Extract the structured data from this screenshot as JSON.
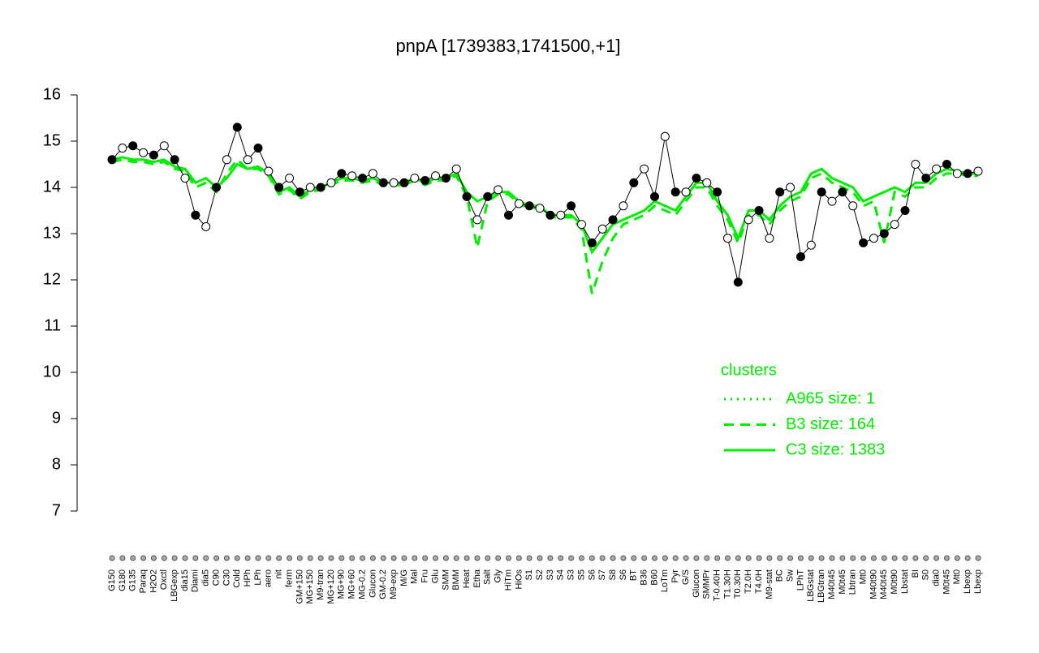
{
  "chart_data": {
    "type": "line",
    "title": "pnpA [1739383,1741500,+1]",
    "categories": [
      "G150",
      "G180",
      "G135",
      "Paraq",
      "H2O2",
      "Oxctl",
      "LBGexp",
      "dia15",
      "Diami",
      "dia5",
      "C90",
      "C30",
      "Cold",
      "HPh",
      "LPh",
      "aero",
      "nit",
      "ferm",
      "GM+150",
      "MG+150",
      "M9-tran",
      "MG+120",
      "MG+90",
      "MG+60",
      "MG-0.2",
      "Glucon",
      "GM-0.2",
      "M9-exp",
      "M/G",
      "Mal",
      "Fru",
      "Glu",
      "SMM",
      "BMM",
      "Heat",
      "Etha",
      "Salt",
      "Gly",
      "HiTm",
      "HiOs",
      "S1",
      "S2",
      "S3",
      "S4",
      "S3",
      "S5",
      "S6",
      "S7",
      "S8",
      "S6",
      "BT",
      "B36",
      "B60",
      "LoTm",
      "Pyr",
      "G/S",
      "Glucon",
      "SMMPr",
      "T-0.40H",
      "T1.30H",
      "T0.30H",
      "T2.0H",
      "T4.0H",
      "M9-stat",
      "BC",
      "Sw",
      "LPhT",
      "LBGstat",
      "LBGtran",
      "M40t45",
      "M0t45",
      "Lbtran",
      "Mt0",
      "M40t90",
      "M40t45",
      "M0t90",
      "Lbstat",
      "BI",
      "S0",
      "dia0",
      "M0t45",
      "Mt0",
      "Lbexp",
      "Lbexp"
    ],
    "values": [
      14.6,
      14.85,
      14.9,
      14.75,
      14.7,
      14.9,
      14.6,
      14.2,
      13.4,
      13.15,
      14.0,
      14.6,
      15.3,
      14.6,
      14.85,
      14.35,
      14.0,
      14.2,
      13.9,
      14.0,
      14.0,
      14.1,
      14.3,
      14.25,
      14.2,
      14.3,
      14.1,
      14.1,
      14.1,
      14.2,
      14.15,
      14.25,
      14.2,
      14.4,
      13.8,
      13.3,
      13.8,
      13.95,
      13.4,
      13.65,
      13.6,
      13.55,
      13.4,
      13.4,
      13.6,
      13.2,
      12.8,
      13.1,
      13.3,
      13.6,
      14.1,
      14.4,
      13.8,
      15.1,
      13.9,
      13.9,
      14.2,
      14.1,
      13.9,
      12.9,
      11.95,
      13.3,
      13.5,
      12.9,
      13.9,
      14.0,
      12.5,
      12.75,
      13.9,
      13.7,
      13.9,
      13.6,
      12.8,
      12.9,
      13.0,
      13.2,
      13.5,
      14.5,
      14.2,
      14.4,
      14.5,
      14.3,
      14.3,
      14.35
    ],
    "color": "#000000",
    "series": [
      {
        "name": "A965 size: 1",
        "color": "#00ee00",
        "style": "dotted",
        "values": [
          null,
          null,
          null,
          null,
          null,
          null,
          null,
          null,
          null,
          null,
          null,
          null,
          null,
          null,
          null,
          null,
          null,
          null,
          null,
          null,
          null,
          null,
          null,
          null,
          null,
          null,
          null,
          null,
          null,
          null,
          null,
          null,
          null,
          null,
          null,
          null,
          null,
          null,
          null,
          null,
          null,
          null,
          null,
          null,
          null,
          null,
          null,
          null,
          null,
          null,
          null,
          null,
          null,
          null,
          null,
          null,
          null,
          null,
          null,
          null,
          null,
          null,
          null,
          null,
          null,
          null,
          null,
          null,
          null,
          null,
          null,
          null,
          null,
          null,
          null,
          null,
          null,
          null,
          null,
          null,
          null,
          null,
          null,
          null
        ]
      },
      {
        "name": "B3 size: 164",
        "color": "#00ee00",
        "style": "dashed",
        "values": [
          14.55,
          14.6,
          14.55,
          14.55,
          14.5,
          14.55,
          14.4,
          14.35,
          14.0,
          14.1,
          13.9,
          14.3,
          14.6,
          14.4,
          14.4,
          14.25,
          13.85,
          13.95,
          13.75,
          13.9,
          13.95,
          14.05,
          14.15,
          14.15,
          14.1,
          14.15,
          14.05,
          14.05,
          14.05,
          14.15,
          14.05,
          14.15,
          14.15,
          14.25,
          13.8,
          12.7,
          13.7,
          13.85,
          13.85,
          13.65,
          13.55,
          13.55,
          13.35,
          13.35,
          13.35,
          13.1,
          11.7,
          12.4,
          12.9,
          13.2,
          13.3,
          13.4,
          13.6,
          13.5,
          13.4,
          13.7,
          14.0,
          14.0,
          13.6,
          13.3,
          12.8,
          13.4,
          13.4,
          13.2,
          13.5,
          13.7,
          13.8,
          14.2,
          14.3,
          14.1,
          14.0,
          13.9,
          13.6,
          13.7,
          12.8,
          13.9,
          13.8,
          14.0,
          14.0,
          14.2,
          14.3,
          14.3,
          14.25,
          14.25
        ]
      },
      {
        "name": "C3 size: 1383",
        "color": "#00ee00",
        "style": "solid",
        "values": [
          14.6,
          14.65,
          14.6,
          14.6,
          14.55,
          14.6,
          14.45,
          14.4,
          14.1,
          14.2,
          14.0,
          14.2,
          14.5,
          14.4,
          14.45,
          14.3,
          13.9,
          14.0,
          13.8,
          13.95,
          14.0,
          14.1,
          14.2,
          14.2,
          14.15,
          14.2,
          14.1,
          14.1,
          14.1,
          14.2,
          14.1,
          14.2,
          14.2,
          14.3,
          13.9,
          13.7,
          13.8,
          13.9,
          13.9,
          13.7,
          13.6,
          13.6,
          13.4,
          13.4,
          13.4,
          13.2,
          12.6,
          12.9,
          13.2,
          13.3,
          13.4,
          13.5,
          13.7,
          13.6,
          13.5,
          13.8,
          14.1,
          14.1,
          13.7,
          13.4,
          12.9,
          13.5,
          13.5,
          13.3,
          13.6,
          13.8,
          13.9,
          14.3,
          14.4,
          14.2,
          14.1,
          14.0,
          13.7,
          13.8,
          13.9,
          14.0,
          13.9,
          14.1,
          14.1,
          14.3,
          14.4,
          14.35,
          14.3,
          14.3
        ]
      }
    ],
    "legend_title": "clusters",
    "legend": "right",
    "ylim": [
      7,
      16
    ],
    "yticks": [
      7,
      8,
      9,
      10,
      11,
      12,
      13,
      14,
      15,
      16
    ]
  }
}
